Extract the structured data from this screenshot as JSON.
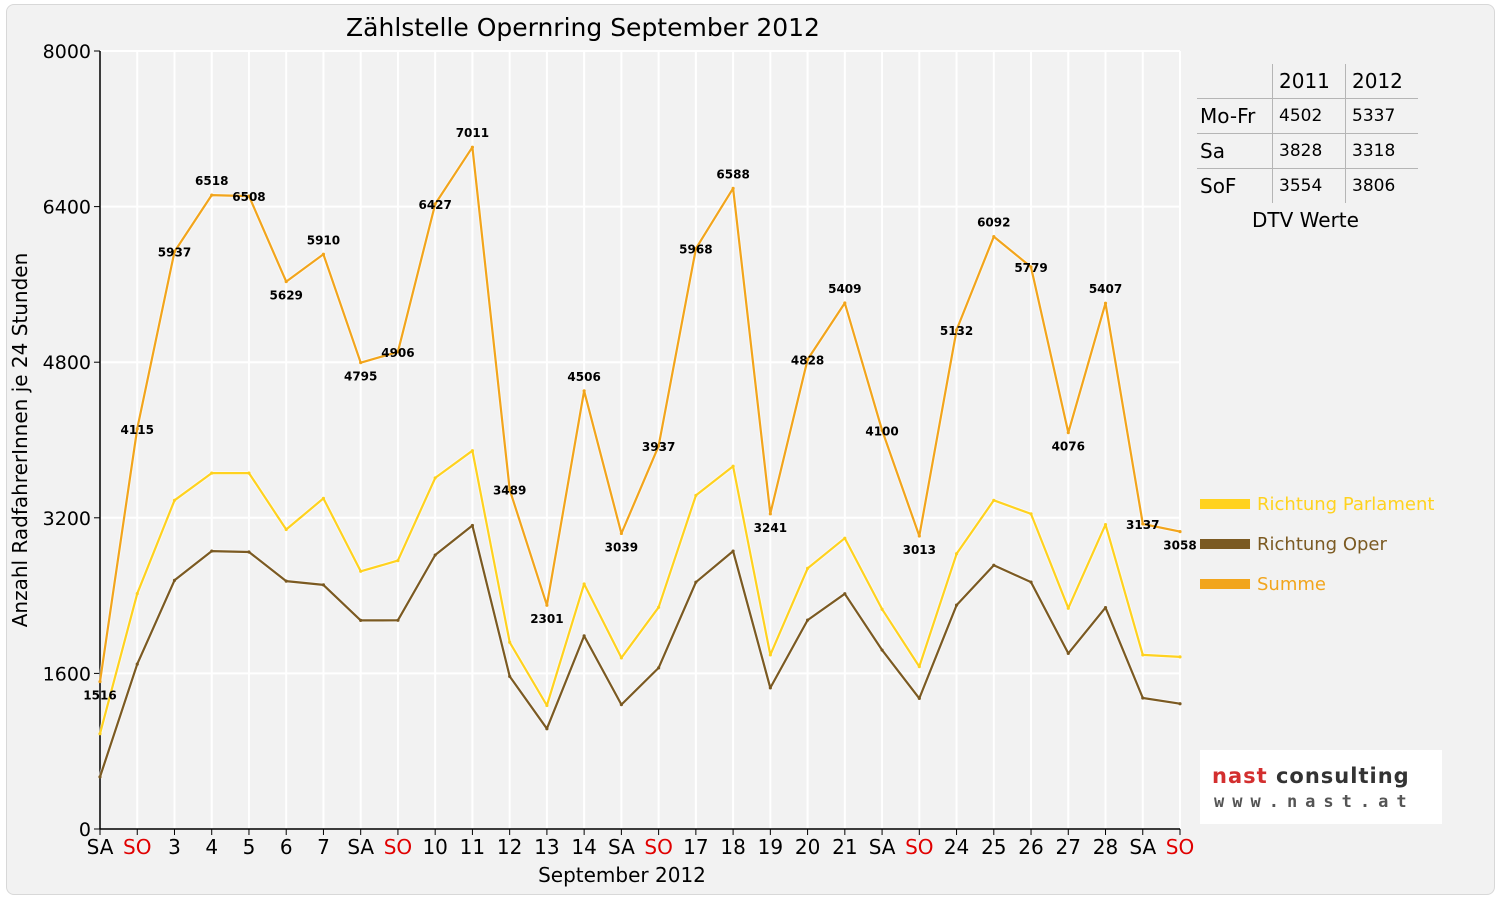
{
  "chart_data": {
    "type": "line",
    "title": "Zählstelle Opernring September 2012",
    "xlabel": "September 2012",
    "ylabel": "Anzahl RadfahrerInnen je 24 Stunden",
    "ylim": [
      0,
      8000
    ],
    "yticks": [
      "0",
      "1600",
      "3200",
      "4800",
      "6400",
      "8000"
    ],
    "grid": true,
    "legend_position": "right",
    "categories": [
      "SA",
      "SO",
      "3",
      "4",
      "5",
      "6",
      "7",
      "SA",
      "SO",
      "10",
      "11",
      "12",
      "13",
      "14",
      "SA",
      "SO",
      "17",
      "18",
      "19",
      "20",
      "21",
      "SA",
      "SO",
      "24",
      "25",
      "26",
      "27",
      "28",
      "SA",
      "SO"
    ],
    "weekend_categories": [
      "SO"
    ],
    "series": [
      {
        "name": "Richtung Parlament",
        "color": "#ffd21f",
        "values": [
          980,
          2420,
          3380,
          3660,
          3660,
          3080,
          3400,
          2650,
          2760,
          3610,
          3890,
          1920,
          1270,
          2520,
          1760,
          2280,
          3430,
          3730,
          1790,
          2680,
          2990,
          2260,
          1670,
          2830,
          3380,
          3240,
          2270,
          3130,
          1790,
          1770
        ]
      },
      {
        "name": "Richtung Oper",
        "color": "#7b5a22",
        "values": [
          536,
          1695,
          2557,
          2858,
          2848,
          2549,
          2510,
          2145,
          2146,
          2817,
          3121,
          1569,
          1031,
          1986,
          1279,
          1657,
          2538,
          2858,
          1451,
          2148,
          2419,
          1840,
          1343,
          2302,
          2712,
          2539,
          1806,
          2277,
          1347,
          1288
        ]
      },
      {
        "name": "Summe",
        "color": "#f2a51c",
        "values": [
          1516,
          4115,
          5937,
          6518,
          6508,
          5629,
          5910,
          4795,
          4906,
          6427,
          7011,
          3489,
          2301,
          4506,
          3039,
          3937,
          5968,
          6588,
          3241,
          4828,
          5409,
          4100,
          3013,
          5132,
          6092,
          5779,
          4076,
          5407,
          3137,
          3058
        ]
      }
    ],
    "data_labels": [
      "1516",
      "4115",
      "5937",
      "6518",
      "6508",
      "5629",
      "5910",
      "4795",
      "4906",
      "6427",
      "7011",
      "3489",
      "2301",
      "4506",
      "3039",
      "3937",
      "5968",
      "6588",
      "3241",
      "4828",
      "5409",
      "4100",
      "3013",
      "5132",
      "6092",
      "5779",
      "4076",
      "5407",
      "3137",
      "3058"
    ]
  },
  "dtv_table": {
    "years": [
      "2011",
      "2012"
    ],
    "rows": [
      {
        "label": "Mo-Fr",
        "v2011": "4502",
        "v2012": "5337"
      },
      {
        "label": "Sa",
        "v2011": "3828",
        "v2012": "3318"
      },
      {
        "label": "SoF",
        "v2011": "3554",
        "v2012": "3806"
      }
    ],
    "caption": "DTV Werte"
  },
  "logo": {
    "name_part1": "nast",
    "name_part2": " consulting",
    "url": "www.nast.at",
    "brand_color": "#d32f2f"
  }
}
